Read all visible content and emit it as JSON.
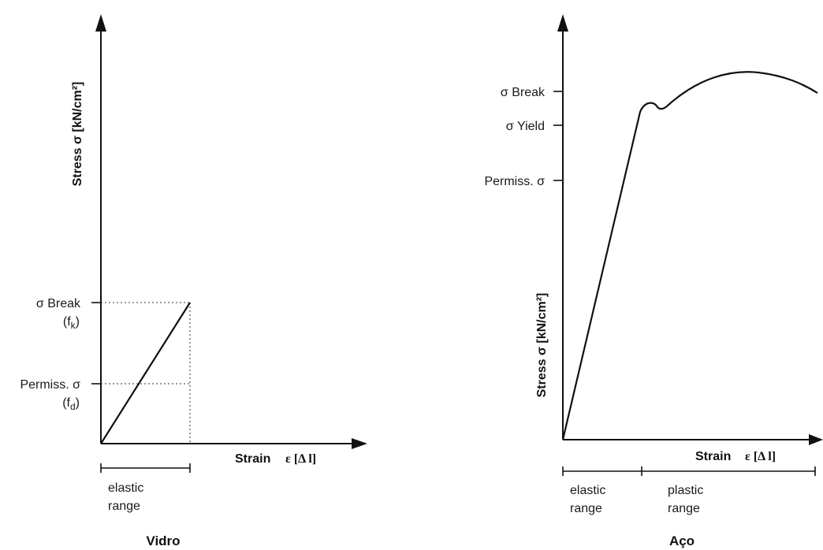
{
  "vidro": {
    "title": "Vidro",
    "y_axis_label": "Stress σ [kN/cm²]",
    "x_axis_label": "Strain",
    "x_axis_symbol": "ε [Δ l]",
    "levels": [
      {
        "label": "σ Break",
        "sublabel_base": "(f",
        "sublabel_sub": "k",
        "sublabel_end": ")"
      },
      {
        "label": "Permiss. σ",
        "sublabel_base": "(f",
        "sublabel_sub": "d",
        "sublabel_end": ")"
      }
    ],
    "ranges": [
      {
        "line1": "elastic",
        "line2": "range"
      }
    ]
  },
  "aco": {
    "title": "Aço",
    "y_axis_label": "Stress σ [kN/cm²]",
    "x_axis_label": "Strain",
    "x_axis_symbol": "ε [Δ l]",
    "levels": [
      {
        "label": "σ Break"
      },
      {
        "label": "σ Yield"
      },
      {
        "label": "Permiss. σ"
      }
    ],
    "ranges": [
      {
        "line1": "elastic",
        "line2": "range"
      },
      {
        "line1": "plastic",
        "line2": "range"
      }
    ]
  }
}
